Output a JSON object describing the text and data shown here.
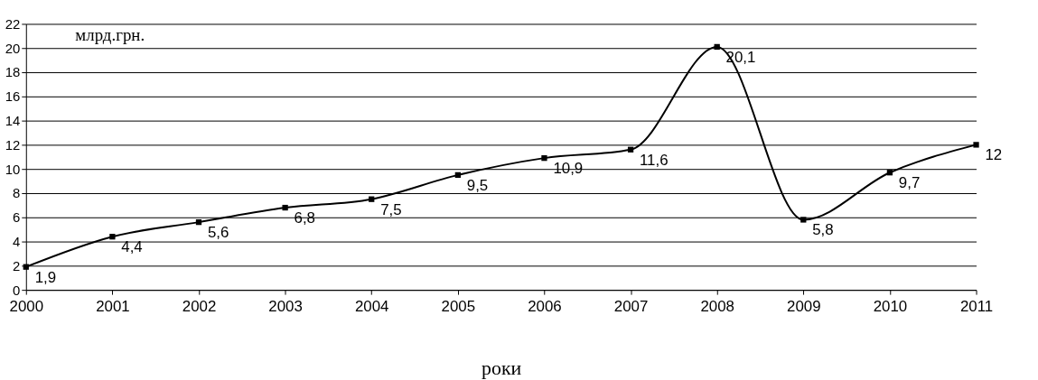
{
  "chart_data": {
    "type": "line",
    "ylabel": "млрд.грн.",
    "xlabel": "роки",
    "categories": [
      "2000",
      "2001",
      "2002",
      "2003",
      "2004",
      "2005",
      "2006",
      "2007",
      "2008",
      "2009",
      "2010",
      "2011"
    ],
    "values": [
      1.9,
      4.4,
      5.6,
      6.8,
      7.5,
      9.5,
      10.9,
      11.6,
      20.1,
      5.8,
      9.7,
      12
    ],
    "value_labels": [
      "1,9",
      "4,4",
      "5,6",
      "6,8",
      "7,5",
      "9,5",
      "10,9",
      "11,6",
      "20,1",
      "5,8",
      "9,7",
      "12"
    ],
    "color": "#000000",
    "ylim": [
      0,
      22
    ],
    "yticks": [
      0,
      2,
      4,
      6,
      8,
      10,
      12,
      14,
      16,
      18,
      20,
      22
    ],
    "grid": "y",
    "marker": "square",
    "line_style": "solid"
  }
}
